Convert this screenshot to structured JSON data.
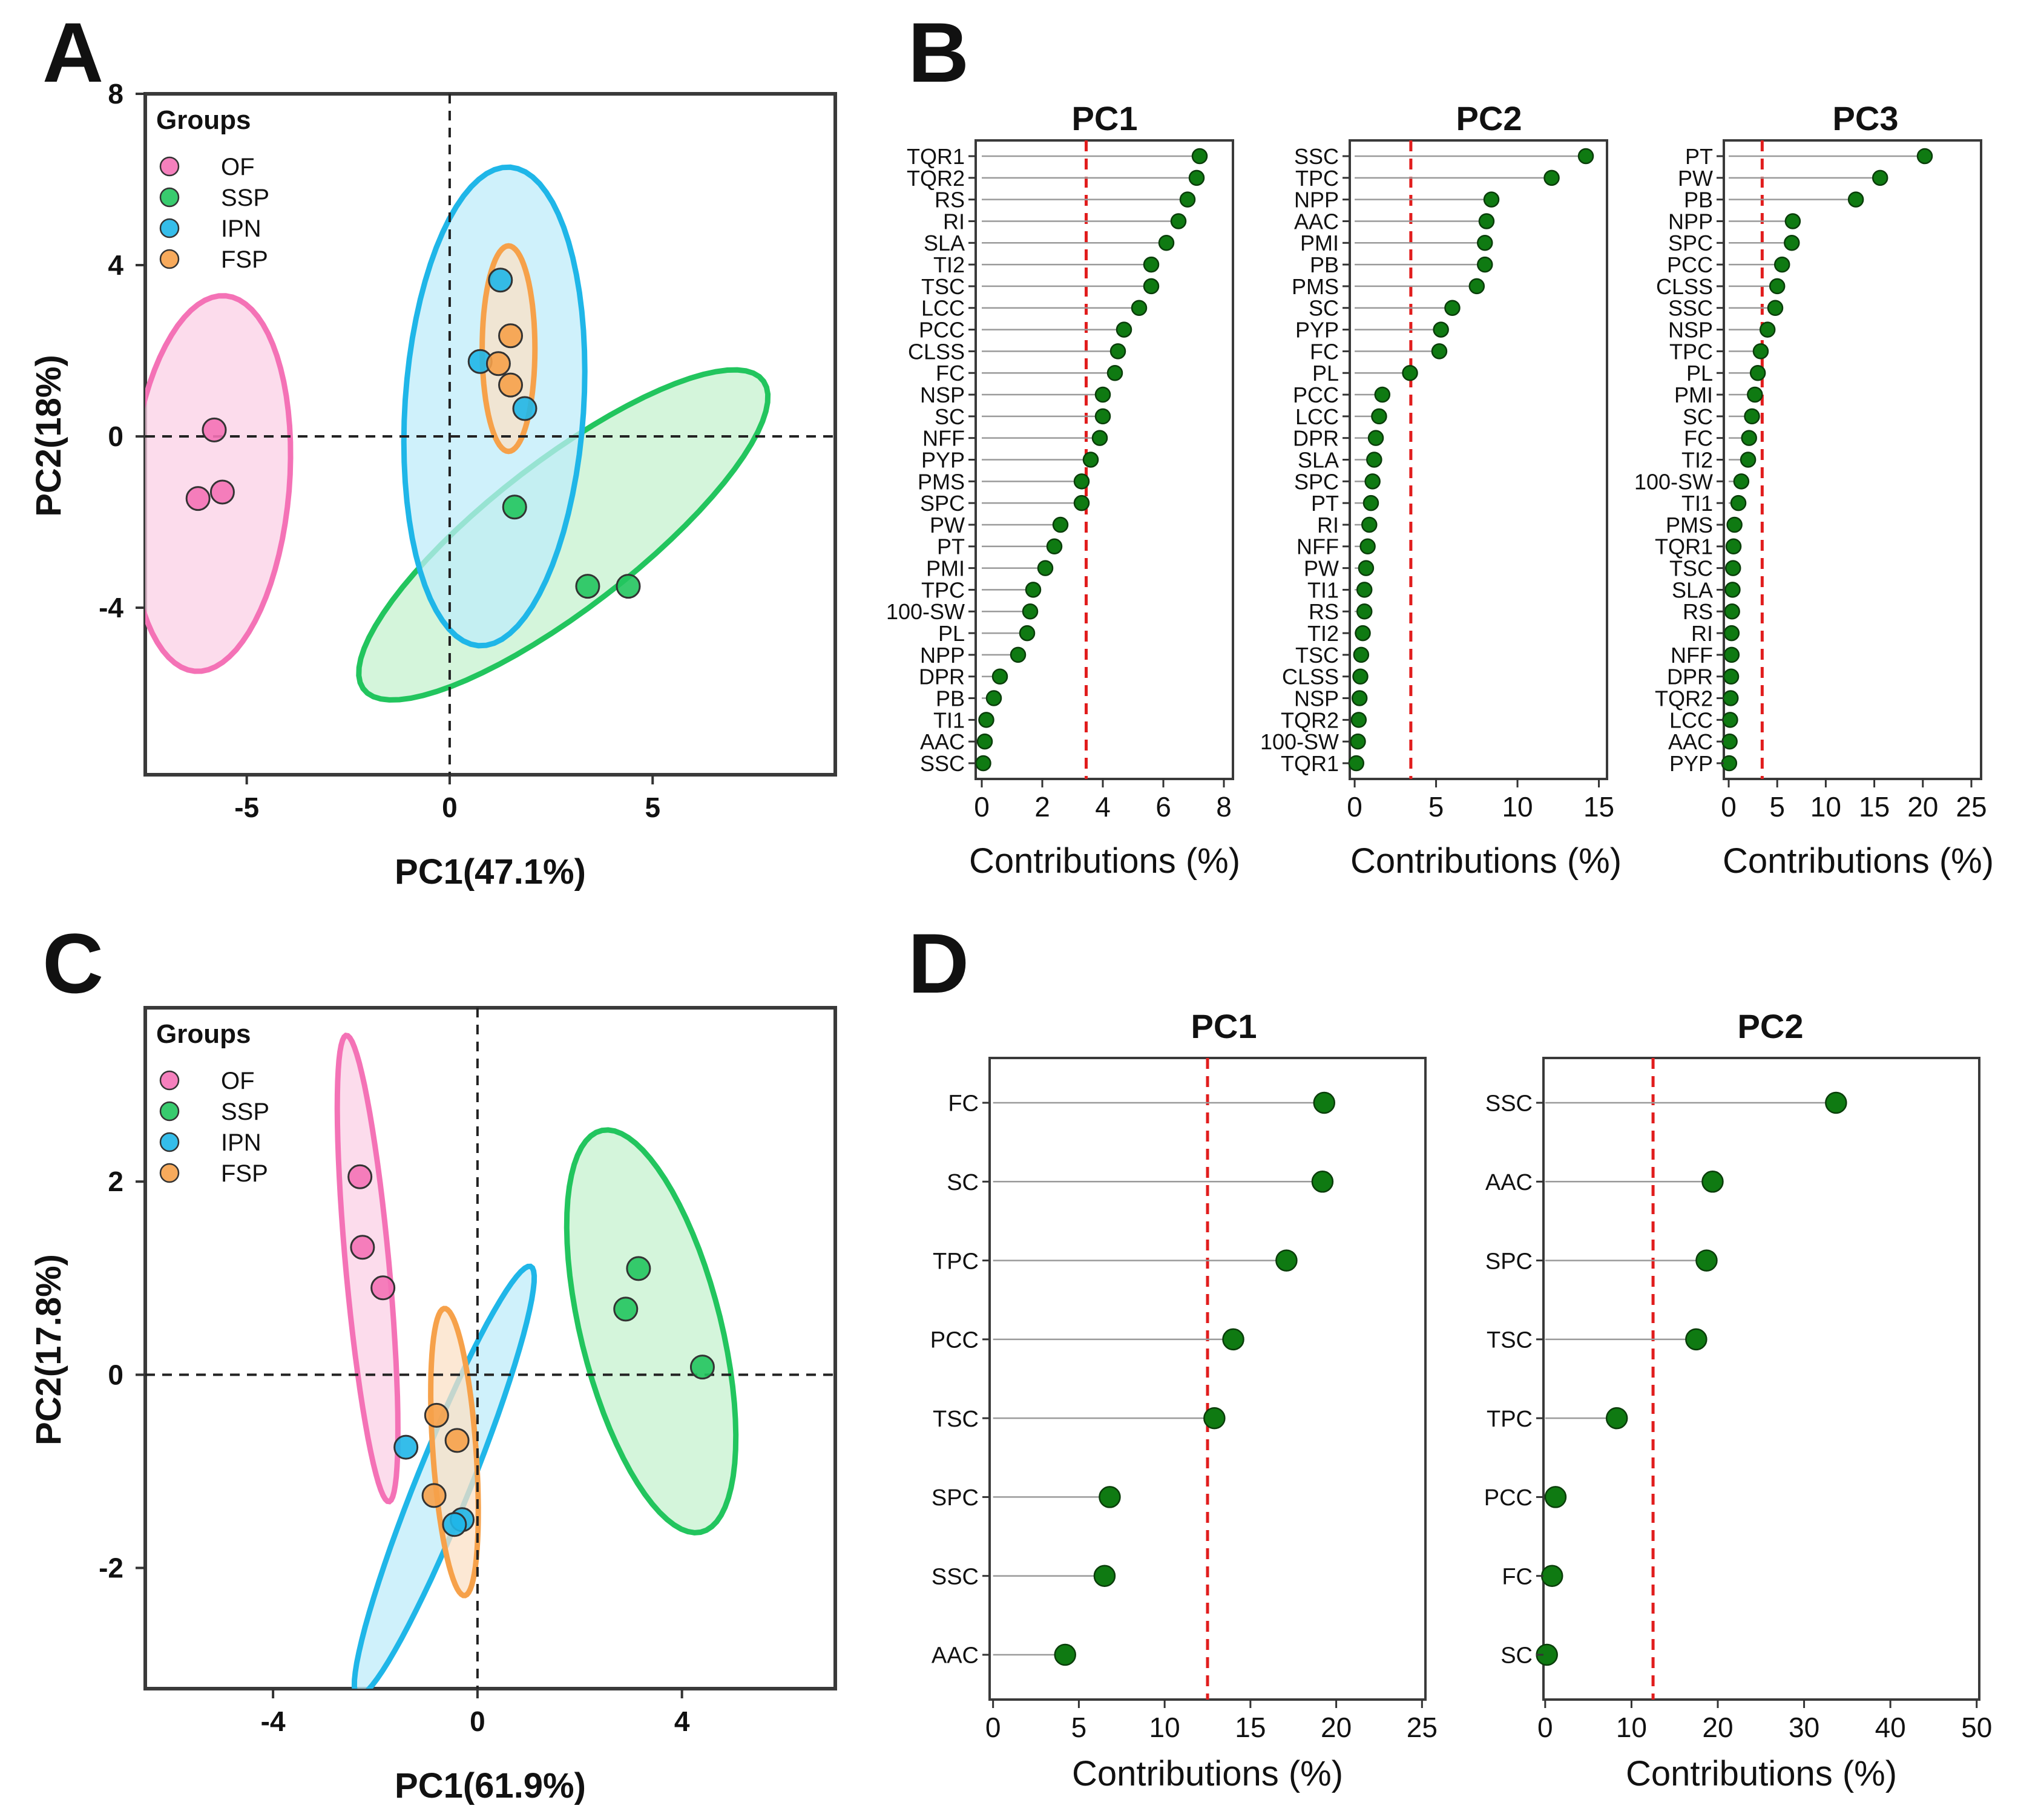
{
  "chart_data": [
    {
      "id": "A",
      "type": "scatter",
      "panel_label": "A",
      "xlabel": "PC1(47.1%)",
      "ylabel": "PC2(18%)",
      "xlim": [
        -7.5,
        9.5
      ],
      "ylim": [
        -7.9,
        8
      ],
      "xticks": [
        -5,
        0,
        5
      ],
      "yticks": [
        -4,
        0,
        4,
        8
      ],
      "legend_title": "Groups",
      "legend_position": "top-left",
      "reference_lines": {
        "x": 0,
        "y": 0
      },
      "groups": [
        {
          "name": "OF",
          "color": "#f472b6",
          "fill": "#fbd0e6",
          "ellipse": {
            "cx": -5.9,
            "cy": -1.1,
            "rx": 4.4,
            "ry": 1.95,
            "angle": -95
          },
          "points": [
            [
              -5.8,
              0.15
            ],
            [
              -6.2,
              -1.45
            ],
            [
              -5.6,
              -1.3
            ]
          ]
        },
        {
          "name": "SSP",
          "color": "#22c55e",
          "fill": "#c5f2cf",
          "ellipse": {
            "cx": 2.8,
            "cy": -2.3,
            "rx": 6.1,
            "ry": 1.75,
            "angle": 36
          },
          "points": [
            [
              1.6,
              -1.65
            ],
            [
              3.4,
              -3.5
            ],
            [
              4.4,
              -3.5
            ]
          ]
        },
        {
          "name": "IPN",
          "color": "#1fb6e8",
          "fill": "#bfecf9",
          "ellipse": {
            "cx": 1.1,
            "cy": 0.7,
            "rx": 5.6,
            "ry": 2.2,
            "angle": 86
          },
          "points": [
            [
              1.25,
              3.65
            ],
            [
              0.75,
              1.75
            ],
            [
              1.85,
              0.65
            ]
          ]
        },
        {
          "name": "FSP",
          "color": "#f6a14a",
          "fill": "#fbe0c6",
          "ellipse": {
            "cx": 1.45,
            "cy": 2.05,
            "rx": 2.4,
            "ry": 0.65,
            "angle": 90
          },
          "points": [
            [
              1.5,
              2.35
            ],
            [
              1.2,
              1.7
            ],
            [
              1.5,
              1.2
            ]
          ]
        }
      ]
    },
    {
      "id": "B1",
      "type": "lollipop",
      "panel_label": "B",
      "title": "PC1",
      "xlabel": "Contributions (%)",
      "xlim": [
        -0.2,
        8.3
      ],
      "xticks": [
        0,
        2,
        4,
        6,
        8
      ],
      "threshold": 3.45,
      "categories": [
        "TQR1",
        "TQR2",
        "RS",
        "RI",
        "SLA",
        "TI2",
        "TSC",
        "LCC",
        "PCC",
        "CLSS",
        "FC",
        "NSP",
        "SC",
        "NFF",
        "PYP",
        "PMS",
        "SPC",
        "PW",
        "PT",
        "PMI",
        "TPC",
        "100-SW",
        "PL",
        "NPP",
        "DPR",
        "PB",
        "TI1",
        "AAC",
        "SSC"
      ],
      "values": [
        7.2,
        7.1,
        6.8,
        6.5,
        6.1,
        5.6,
        5.6,
        5.2,
        4.7,
        4.5,
        4.4,
        4.0,
        4.0,
        3.9,
        3.6,
        3.3,
        3.3,
        2.6,
        2.4,
        2.1,
        1.7,
        1.6,
        1.5,
        1.2,
        0.6,
        0.4,
        0.15,
        0.1,
        0.05
      ]
    },
    {
      "id": "B2",
      "type": "lollipop",
      "title": "PC2",
      "xlabel": "Contributions (%)",
      "xlim": [
        -0.3,
        15.5
      ],
      "xticks": [
        0,
        5,
        10,
        15
      ],
      "threshold": 3.45,
      "categories": [
        "SSC",
        "TPC",
        "NPP",
        "AAC",
        "PMI",
        "PB",
        "PMS",
        "SC",
        "PYP",
        "FC",
        "PL",
        "PCC",
        "LCC",
        "DPR",
        "SLA",
        "SPC",
        "PT",
        "RI",
        "NFF",
        "PW",
        "TI1",
        "RS",
        "TI2",
        "TSC",
        "CLSS",
        "NSP",
        "TQR2",
        "100-SW",
        "TQR1"
      ],
      "values": [
        14.2,
        12.1,
        8.4,
        8.1,
        8.0,
        8.0,
        7.5,
        6.0,
        5.3,
        5.2,
        3.4,
        1.7,
        1.5,
        1.3,
        1.2,
        1.1,
        1.0,
        0.9,
        0.8,
        0.7,
        0.6,
        0.6,
        0.5,
        0.4,
        0.35,
        0.3,
        0.25,
        0.2,
        0.1
      ]
    },
    {
      "id": "B3",
      "type": "lollipop",
      "title": "PC3",
      "xlabel": "Contributions (%)",
      "xlim": [
        -0.5,
        26
      ],
      "xticks": [
        0,
        5,
        10,
        15,
        20,
        25
      ],
      "threshold": 3.45,
      "categories": [
        "PT",
        "PW",
        "PB",
        "NPP",
        "SPC",
        "PCC",
        "CLSS",
        "SSC",
        "NSP",
        "TPC",
        "PL",
        "PMI",
        "SC",
        "FC",
        "TI2",
        "100-SW",
        "TI1",
        "PMS",
        "TQR1",
        "TSC",
        "SLA",
        "RS",
        "RI",
        "NFF",
        "DPR",
        "TQR2",
        "LCC",
        "AAC",
        "PYP"
      ],
      "values": [
        20.2,
        15.6,
        13.1,
        6.6,
        6.5,
        5.5,
        5.0,
        4.8,
        4.0,
        3.3,
        3.0,
        2.7,
        2.4,
        2.1,
        2.0,
        1.3,
        1.0,
        0.6,
        0.5,
        0.45,
        0.4,
        0.35,
        0.3,
        0.3,
        0.25,
        0.2,
        0.15,
        0.1,
        0.05
      ]
    },
    {
      "id": "C",
      "type": "scatter",
      "panel_label": "C",
      "xlabel": "PC1(61.9%)",
      "ylabel": "PC2(17.8%)",
      "xlim": [
        -6.5,
        7
      ],
      "ylim": [
        -3.25,
        3.8
      ],
      "xticks": [
        -4,
        0,
        4
      ],
      "yticks": [
        -2,
        0,
        2
      ],
      "legend_title": "Groups",
      "legend_position": "top-left",
      "reference_lines": {
        "x": 0,
        "y": 0
      },
      "groups": [
        {
          "name": "OF",
          "color": "#f472b6",
          "fill": "#fbd0e6",
          "ellipse": {
            "cx": -2.15,
            "cy": 1.1,
            "rx": 2.45,
            "ry": 0.42,
            "angle": -80
          },
          "points": [
            [
              -2.3,
              2.05
            ],
            [
              -2.25,
              1.32
            ],
            [
              -1.85,
              0.9
            ]
          ]
        },
        {
          "name": "SSP",
          "color": "#22c55e",
          "fill": "#c5f2cf",
          "ellipse": {
            "cx": 3.4,
            "cy": 0.45,
            "rx": 2.35,
            "ry": 1.25,
            "angle": -57
          },
          "points": [
            [
              3.15,
              1.1
            ],
            [
              2.9,
              0.68
            ],
            [
              4.4,
              0.08
            ]
          ]
        },
        {
          "name": "IPN",
          "color": "#1fb6e8",
          "fill": "#bfecf9",
          "ellipse": {
            "cx": -0.65,
            "cy": -1.1,
            "rx": 2.8,
            "ry": 0.45,
            "angle": 52
          },
          "points": [
            [
              -1.4,
              -0.75
            ],
            [
              -0.3,
              -1.5
            ],
            [
              -0.45,
              -1.55
            ]
          ]
        },
        {
          "name": "FSP",
          "color": "#f6a14a",
          "fill": "#fbe0c6",
          "ellipse": {
            "cx": -0.45,
            "cy": -0.8,
            "rx": 1.5,
            "ry": 0.42,
            "angle": -82
          },
          "points": [
            [
              -0.8,
              -0.42
            ],
            [
              -0.4,
              -0.68
            ],
            [
              -0.85,
              -1.25
            ]
          ]
        }
      ]
    },
    {
      "id": "D1",
      "type": "lollipop",
      "panel_label": "D",
      "title": "PC1",
      "xlabel": "Contributions (%)",
      "xlim": [
        -0.2,
        25.2
      ],
      "xticks": [
        0,
        5,
        10,
        15,
        20,
        25
      ],
      "threshold": 12.5,
      "categories": [
        "FC",
        "SC",
        "TPC",
        "PCC",
        "TSC",
        "SPC",
        "SSC",
        "AAC"
      ],
      "values": [
        19.3,
        19.2,
        17.1,
        14.0,
        12.9,
        6.8,
        6.5,
        4.2
      ]
    },
    {
      "id": "D2",
      "type": "lollipop",
      "title": "PC2",
      "xlabel": "Contributions (%)",
      "xlim": [
        -0.2,
        50.3
      ],
      "xticks": [
        0,
        10,
        20,
        30,
        40,
        50
      ],
      "threshold": 12.5,
      "categories": [
        "SSC",
        "AAC",
        "SPC",
        "TSC",
        "TPC",
        "PCC",
        "FC",
        "SC"
      ],
      "values": [
        33.7,
        19.4,
        18.7,
        17.5,
        8.3,
        1.2,
        0.8,
        0.2
      ]
    }
  ]
}
